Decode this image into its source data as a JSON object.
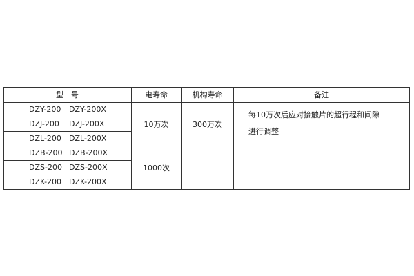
{
  "headers": {
    "model": "型　号",
    "electrical_life": "电寿命",
    "mechanical_life": "机构寿命",
    "remarks": "备注"
  },
  "rows": [
    {
      "model": "DZY-200",
      "model_x": "DZY-200X"
    },
    {
      "model": "DZJ-200",
      "model_x": "DZJ-200X"
    },
    {
      "model": "DZL-200",
      "model_x": "DZL-200X"
    },
    {
      "model": "DZB-200",
      "model_x": "DZB-200X"
    },
    {
      "model": "DZS-200",
      "model_x": "DZS-200X"
    },
    {
      "model": "DZK-200",
      "model_x": "DZK-200X"
    }
  ],
  "groups": [
    {
      "electrical_life": "10万次",
      "mechanical_life": "300万次",
      "remarks_line1": "每10万次后应对接触片的超行程和间隙",
      "remarks_line2": "进行调整"
    },
    {
      "electrical_life": "1000次",
      "mechanical_life": "",
      "remarks_line1": "",
      "remarks_line2": ""
    }
  ]
}
